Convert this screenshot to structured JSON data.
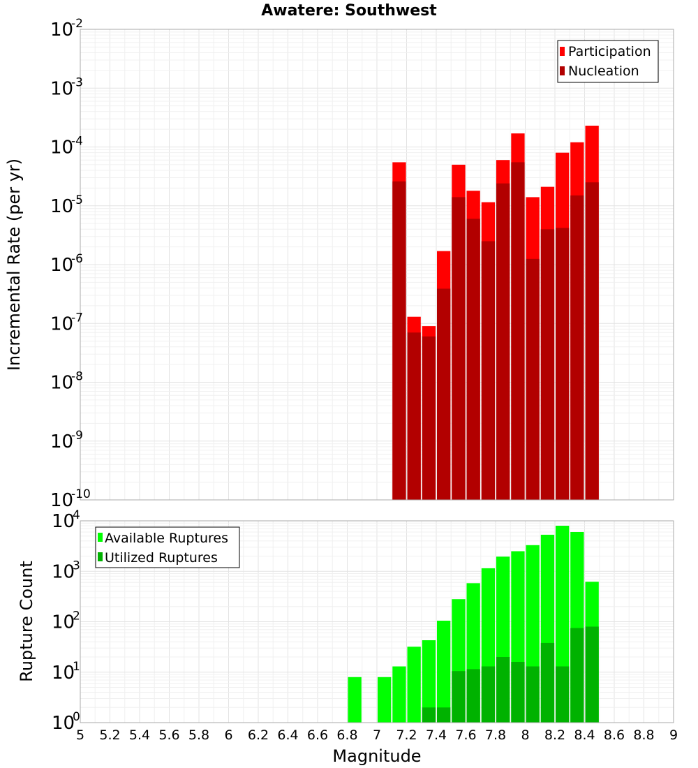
{
  "chart_data": [
    {
      "type": "bar",
      "title": "Awatere: Southwest",
      "ylabel": "Incremental Rate (per yr)",
      "yscale": "log",
      "ylim_exp": [
        -10,
        -2
      ],
      "xlim": [
        5,
        9
      ],
      "legend_position": "top-right",
      "colors": {
        "Participation": "#ff0000",
        "Nucleation": "#b20000"
      },
      "x": [
        7.15,
        7.25,
        7.35,
        7.45,
        7.55,
        7.65,
        7.75,
        7.85,
        7.95,
        8.05,
        8.15,
        8.25,
        8.35,
        8.45
      ],
      "series": [
        {
          "name": "Participation",
          "values": [
            5.5e-05,
            1.3e-07,
            9e-08,
            1.7e-06,
            5e-05,
            1.8e-05,
            1.15e-05,
            6e-05,
            0.00017,
            1.4e-05,
            2.1e-05,
            8e-05,
            0.00012,
            0.00023
          ]
        },
        {
          "name": "Nucleation",
          "values": [
            2.6e-05,
            7e-08,
            6e-08,
            3.9e-07,
            1.4e-05,
            6e-06,
            2.5e-06,
            2.4e-05,
            5.5e-05,
            1.25e-06,
            4e-06,
            4.2e-06,
            1.5e-05,
            2.5e-05
          ]
        }
      ]
    },
    {
      "type": "bar",
      "ylabel": "Rupture Count",
      "xlabel": "Magnitude",
      "yscale": "log",
      "ylim_exp": [
        0,
        4
      ],
      "xlim": [
        5,
        9
      ],
      "legend_position": "top-left",
      "colors": {
        "Available Ruptures": "#00ff00",
        "Utilized Ruptures": "#00b200"
      },
      "x": [
        6.85,
        7.05,
        7.15,
        7.25,
        7.35,
        7.45,
        7.55,
        7.65,
        7.75,
        7.85,
        7.95,
        8.05,
        8.15,
        8.25,
        8.35,
        8.45
      ],
      "series": [
        {
          "name": "Available Ruptures",
          "values": [
            8,
            8,
            13,
            32,
            43,
            105,
            280,
            580,
            1150,
            1950,
            2500,
            3300,
            5300,
            8000,
            6000,
            620
          ]
        },
        {
          "name": "Utilized Ruptures",
          "values": [
            0,
            0,
            1,
            1,
            2,
            2,
            10.5,
            11.5,
            13,
            20,
            16,
            13,
            38,
            13,
            75,
            80
          ]
        }
      ]
    }
  ],
  "x_ticks": [
    "5",
    "5.2",
    "5.4",
    "5.6",
    "5.8",
    "6",
    "6.2",
    "6.4",
    "6.6",
    "6.8",
    "7",
    "7.2",
    "7.4",
    "7.6",
    "7.8",
    "8",
    "8.2",
    "8.4",
    "8.6",
    "8.8",
    "9"
  ],
  "y_tick_base": "10"
}
